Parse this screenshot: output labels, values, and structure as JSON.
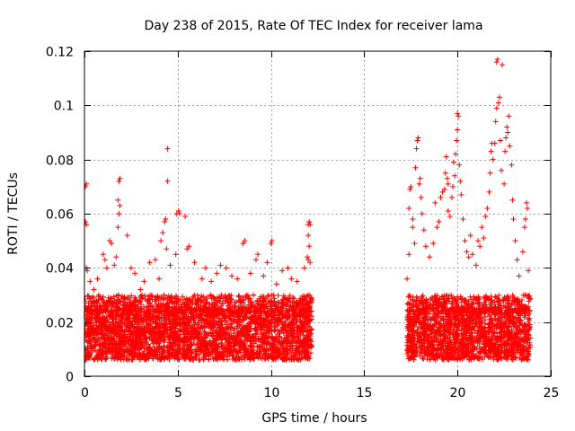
{
  "chart_data": {
    "type": "scatter",
    "title": "Day 238 of 2015, Rate Of TEC Index for receiver lama",
    "xlabel": "GPS time / hours",
    "ylabel": "ROTI / TECUs",
    "xlim": [
      0,
      25
    ],
    "ylim": [
      0,
      0.12
    ],
    "x_ticks": [
      0,
      5,
      10,
      15,
      20,
      25
    ],
    "x_tick_labels": [
      "0",
      "5",
      "10",
      "15",
      "20",
      "25"
    ],
    "y_ticks": [
      0,
      0.02,
      0.04,
      0.06,
      0.08,
      0.1,
      0.12
    ],
    "y_tick_labels": [
      "0",
      "0.02",
      "0.04",
      "0.06",
      "0.08",
      "0.1",
      "0.12"
    ],
    "grid": true,
    "legend": "none",
    "marker": "+",
    "color": "#ff0000",
    "series": [
      {
        "points": [
          [
            0.05,
            0.07
          ],
          [
            0.1,
            0.071
          ],
          [
            0.05,
            0.057
          ],
          [
            0.1,
            0.056
          ],
          [
            0.1,
            0.04
          ],
          [
            0.15,
            0.039
          ],
          [
            0.3,
            0.035
          ],
          [
            0.5,
            0.032
          ],
          [
            0.7,
            0.036
          ],
          [
            1.0,
            0.045
          ],
          [
            1.1,
            0.043
          ],
          [
            1.2,
            0.04
          ],
          [
            1.35,
            0.05
          ],
          [
            1.45,
            0.049
          ],
          [
            1.6,
            0.041
          ],
          [
            1.7,
            0.044
          ],
          [
            1.8,
            0.055
          ],
          [
            1.85,
            0.072
          ],
          [
            1.9,
            0.073
          ],
          [
            1.8,
            0.065
          ],
          [
            1.9,
            0.063
          ],
          [
            1.85,
            0.06
          ],
          [
            2.3,
            0.052
          ],
          [
            2.5,
            0.04
          ],
          [
            2.7,
            0.038
          ],
          [
            3.0,
            0.032
          ],
          [
            3.2,
            0.035
          ],
          [
            3.5,
            0.042
          ],
          [
            3.8,
            0.043
          ],
          [
            4.0,
            0.036
          ],
          [
            4.1,
            0.05
          ],
          [
            4.2,
            0.053
          ],
          [
            4.3,
            0.057
          ],
          [
            4.35,
            0.058
          ],
          [
            4.4,
            0.047
          ],
          [
            4.45,
            0.084
          ],
          [
            4.45,
            0.072
          ],
          [
            4.6,
            0.041
          ],
          [
            4.9,
            0.045
          ],
          [
            4.95,
            0.06
          ],
          [
            5.05,
            0.061
          ],
          [
            5.1,
            0.06
          ],
          [
            5.4,
            0.059
          ],
          [
            5.5,
            0.047
          ],
          [
            5.6,
            0.048
          ],
          [
            5.9,
            0.042
          ],
          [
            6.3,
            0.036
          ],
          [
            6.5,
            0.04
          ],
          [
            6.8,
            0.035
          ],
          [
            7.1,
            0.038
          ],
          [
            7.3,
            0.041
          ],
          [
            7.6,
            0.04
          ],
          [
            7.9,
            0.037
          ],
          [
            8.2,
            0.036
          ],
          [
            8.5,
            0.049
          ],
          [
            8.6,
            0.05
          ],
          [
            8.9,
            0.038
          ],
          [
            9.2,
            0.043
          ],
          [
            9.3,
            0.045
          ],
          [
            9.6,
            0.037
          ],
          [
            9.8,
            0.042
          ],
          [
            10.0,
            0.049
          ],
          [
            10.05,
            0.05
          ],
          [
            10.3,
            0.034
          ],
          [
            10.6,
            0.039
          ],
          [
            10.9,
            0.04
          ],
          [
            11.1,
            0.036
          ],
          [
            11.4,
            0.035
          ],
          [
            11.8,
            0.04
          ],
          [
            11.95,
            0.044
          ],
          [
            12.0,
            0.056
          ],
          [
            12.05,
            0.057
          ],
          [
            12.1,
            0.056
          ],
          [
            12.0,
            0.052
          ],
          [
            12.05,
            0.048
          ],
          [
            12.0,
            0.043
          ],
          [
            12.1,
            0.042
          ],
          [
            17.3,
            0.036
          ],
          [
            17.4,
            0.045
          ],
          [
            17.4,
            0.062
          ],
          [
            17.45,
            0.069
          ],
          [
            17.5,
            0.07
          ],
          [
            17.6,
            0.055
          ],
          [
            17.6,
            0.058
          ],
          [
            17.7,
            0.049
          ],
          [
            17.75,
            0.077
          ],
          [
            17.8,
            0.084
          ],
          [
            17.85,
            0.087
          ],
          [
            17.9,
            0.088
          ],
          [
            17.95,
            0.071
          ],
          [
            18.0,
            0.073
          ],
          [
            18.05,
            0.066
          ],
          [
            18.1,
            0.06
          ],
          [
            18.2,
            0.054
          ],
          [
            18.3,
            0.048
          ],
          [
            18.5,
            0.044
          ],
          [
            18.7,
            0.049
          ],
          [
            18.8,
            0.064
          ],
          [
            18.9,
            0.055
          ],
          [
            19.0,
            0.057
          ],
          [
            19.1,
            0.066
          ],
          [
            19.2,
            0.068
          ],
          [
            19.3,
            0.069
          ],
          [
            19.35,
            0.075
          ],
          [
            19.4,
            0.081
          ],
          [
            19.45,
            0.073
          ],
          [
            19.5,
            0.071
          ],
          [
            19.5,
            0.061
          ],
          [
            19.6,
            0.059
          ],
          [
            19.7,
            0.066
          ],
          [
            19.75,
            0.07
          ],
          [
            19.8,
            0.079
          ],
          [
            19.85,
            0.074
          ],
          [
            19.9,
            0.082
          ],
          [
            19.95,
            0.087
          ],
          [
            20.0,
            0.091
          ],
          [
            20.05,
            0.096
          ],
          [
            20.0,
            0.097
          ],
          [
            20.1,
            0.078
          ],
          [
            20.15,
            0.072
          ],
          [
            20.2,
            0.067
          ],
          [
            20.3,
            0.058
          ],
          [
            20.4,
            0.05
          ],
          [
            20.5,
            0.046
          ],
          [
            20.6,
            0.044
          ],
          [
            20.7,
            0.052
          ],
          [
            20.8,
            0.045
          ],
          [
            21.0,
            0.041
          ],
          [
            21.1,
            0.05
          ],
          [
            21.2,
            0.048
          ],
          [
            21.3,
            0.055
          ],
          [
            21.4,
            0.051
          ],
          [
            21.5,
            0.059
          ],
          [
            21.6,
            0.062
          ],
          [
            21.7,
            0.068
          ],
          [
            21.75,
            0.075
          ],
          [
            21.8,
            0.083
          ],
          [
            21.85,
            0.086
          ],
          [
            21.9,
            0.08
          ],
          [
            22.0,
            0.086
          ],
          [
            22.05,
            0.094
          ],
          [
            22.1,
            0.099
          ],
          [
            22.2,
            0.101
          ],
          [
            22.25,
            0.103
          ],
          [
            22.1,
            0.116
          ],
          [
            22.15,
            0.117
          ],
          [
            22.4,
            0.115
          ],
          [
            22.3,
            0.087
          ],
          [
            22.35,
            0.076
          ],
          [
            22.5,
            0.071
          ],
          [
            22.55,
            0.083
          ],
          [
            22.6,
            0.088
          ],
          [
            22.65,
            0.092
          ],
          [
            22.7,
            0.09
          ],
          [
            22.75,
            0.096
          ],
          [
            22.8,
            0.085
          ],
          [
            22.9,
            0.078
          ],
          [
            22.95,
            0.065
          ],
          [
            23.0,
            0.058
          ],
          [
            23.1,
            0.05
          ],
          [
            23.2,
            0.043
          ],
          [
            23.3,
            0.037
          ],
          [
            23.5,
            0.046
          ],
          [
            23.6,
            0.055
          ],
          [
            23.7,
            0.064
          ],
          [
            23.75,
            0.062
          ],
          [
            23.65,
            0.058
          ],
          [
            23.8,
            0.039
          ]
        ],
        "envelope": {
          "x_ranges": [
            [
              0,
              12.2
            ],
            [
              17.3,
              23.9
            ]
          ],
          "dense_band": [
            0.006,
            0.024
          ],
          "spread_max": 0.03
        }
      }
    ]
  }
}
